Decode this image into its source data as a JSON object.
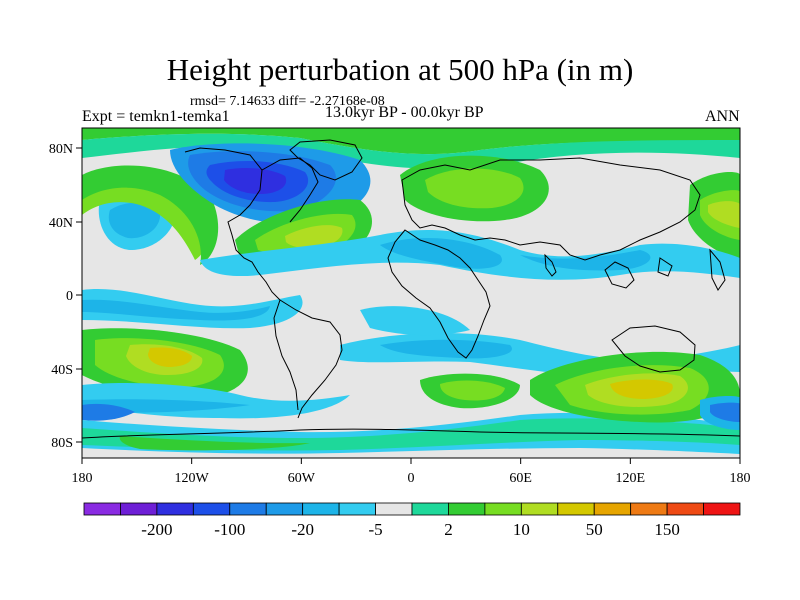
{
  "title": "Height perturbation at 500 hPa (in m)",
  "stats_line": "rmsd= 7.14633 diff= -2.27168e-08",
  "left_label": "Expt = temkn1-temka1",
  "center_label": "13.0kyr BP - 00.0kyr BP",
  "right_label": "ANN",
  "lat_labels": [
    "80N",
    "40N",
    "0",
    "40S",
    "80S"
  ],
  "lon_labels": [
    "180",
    "120W",
    "60W",
    "0",
    "60E",
    "120E",
    "180"
  ],
  "colorbar": {
    "colors": [
      "#8a2be2",
      "#6e1fd6",
      "#2f2fe0",
      "#1d4fe8",
      "#1e7be6",
      "#1e9be8",
      "#1db4e8",
      "#33ccf0",
      "#e6e6e6",
      "#1ed89a",
      "#33cc33",
      "#77dd22",
      "#b0dd22",
      "#d4c800",
      "#e6a500",
      "#ee7a14",
      "#ee4a14",
      "#ee1414"
    ],
    "labels": [
      "-200",
      "-100",
      "-20",
      "-5",
      "2",
      "10",
      "50",
      "150"
    ]
  }
}
